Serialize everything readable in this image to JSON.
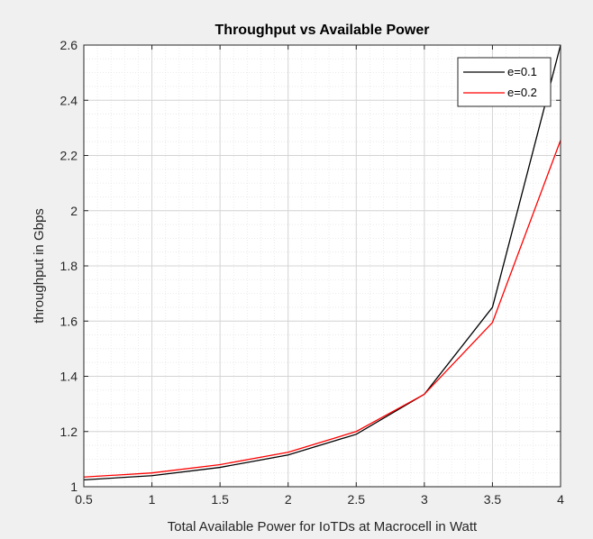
{
  "chart_data": {
    "type": "line",
    "title": "Throughput vs Available Power",
    "xlabel": "Total Available Power for IoTDs at Macrocell in Watt",
    "ylabel": "throughput in Gbps",
    "xlim": [
      0.5,
      4
    ],
    "ylim": [
      1,
      2.6
    ],
    "xticks": [
      0.5,
      1,
      1.5,
      2,
      2.5,
      3,
      3.5,
      4
    ],
    "yticks": [
      1,
      1.2,
      1.4,
      1.6,
      1.8,
      2,
      2.2,
      2.4,
      2.6
    ],
    "x": [
      0.5,
      1,
      1.5,
      2,
      2.5,
      3,
      3.5,
      4
    ],
    "series": [
      {
        "name": "e=0.1",
        "color": "#000000",
        "values": [
          1.025,
          1.04,
          1.07,
          1.115,
          1.19,
          1.335,
          1.65,
          2.6
        ]
      },
      {
        "name": "e=0.2",
        "color": "#ff0000",
        "values": [
          1.035,
          1.05,
          1.08,
          1.125,
          1.2,
          1.335,
          1.595,
          2.255
        ]
      }
    ],
    "grid": true,
    "minor_grid": true,
    "legend_position": "top-right"
  }
}
